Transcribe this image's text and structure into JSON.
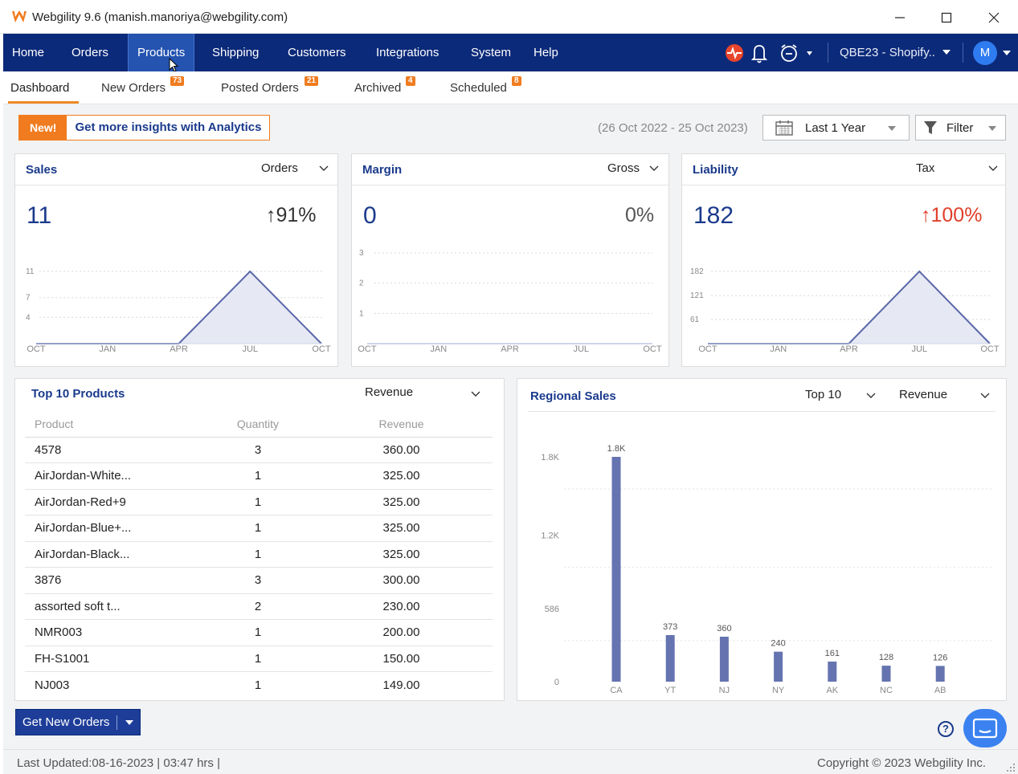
{
  "window": {
    "title": "Webgility 9.6 (manish.manoriya@webgility.com)",
    "minimize_icon": "minimize-icon",
    "maximize_icon": "maximize-icon",
    "close_icon": "close-icon"
  },
  "nav": {
    "items": [
      "Home",
      "Orders",
      "Products",
      "Shipping",
      "Customers",
      "Integrations",
      "System",
      "Help"
    ],
    "active": "Products",
    "company": "QBE23 - Shopify..",
    "avatar": "M"
  },
  "tabs": [
    {
      "label": "Dashboard",
      "badge": ""
    },
    {
      "label": "New Orders",
      "badge": "73"
    },
    {
      "label": "Posted Orders",
      "badge": "21"
    },
    {
      "label": "Archived",
      "badge": "4"
    },
    {
      "label": "Scheduled",
      "badge": "8"
    }
  ],
  "toolbar": {
    "promo_new": "New!",
    "promo_text": "Get more insights with Analytics",
    "date_range": "(26 Oct 2022 - 25 Oct 2023)",
    "period": "Last 1 Year",
    "filter": "Filter"
  },
  "colors": {
    "nav": "#0c2a7a",
    "accent": "#f07c1f",
    "title_blue": "#1a3a8c",
    "up_red": "#e0402a",
    "bar": "#6574b0"
  },
  "cards": {
    "sales": {
      "title": "Sales",
      "dropdown": "Orders",
      "value": "11",
      "change": "91%",
      "arrow": "↑"
    },
    "margin": {
      "title": "Margin",
      "dropdown": "Gross",
      "value": "0",
      "change": "0%"
    },
    "liability": {
      "title": "Liability",
      "dropdown": "Tax",
      "value": "182",
      "change": "100%",
      "arrow": "↑"
    }
  },
  "top_products": {
    "title": "Top 10 Products",
    "dropdown": "Revenue",
    "headers": [
      "Product",
      "Quantity",
      "Revenue"
    ],
    "rows": [
      [
        "4578",
        "3",
        "360.00"
      ],
      [
        "AirJordan-White...",
        "1",
        "325.00"
      ],
      [
        "AirJordan-Red+9",
        "1",
        "325.00"
      ],
      [
        "AirJordan-Blue+...",
        "1",
        "325.00"
      ],
      [
        "AirJordan-Black...",
        "1",
        "325.00"
      ],
      [
        "3876",
        "3",
        "300.00"
      ],
      [
        "assorted soft t...",
        "2",
        "230.00"
      ],
      [
        "NMR003",
        "1",
        "200.00"
      ],
      [
        "FH-S1001",
        "1",
        "150.00"
      ],
      [
        "NJ003",
        "1",
        "149.00"
      ]
    ]
  },
  "regional": {
    "title": "Regional Sales",
    "top_dropdown": "Top 10",
    "metric_dropdown": "Revenue"
  },
  "actions": {
    "get_new_orders": "Get New Orders"
  },
  "footer": {
    "last_updated": "Last Updated:08-16-2023 | 03:47 hrs |",
    "copyright": "Copyright © 2023 Webgility Inc."
  },
  "chart_data": [
    {
      "type": "area",
      "title": "Sales",
      "categories": [
        "OCT",
        "JAN",
        "APR",
        "JUL",
        "OCT"
      ],
      "y_ticks": [
        "4",
        "7",
        "11"
      ],
      "ylim": [
        0,
        11
      ],
      "values": [
        0,
        0,
        0,
        11,
        0
      ]
    },
    {
      "type": "line",
      "title": "Margin",
      "categories": [
        "OCT",
        "JAN",
        "APR",
        "JUL",
        "OCT"
      ],
      "y_ticks": [
        "1",
        "2",
        "3"
      ],
      "ylim": [
        0,
        3
      ],
      "values": [
        0,
        0,
        0,
        0,
        0
      ]
    },
    {
      "type": "area",
      "title": "Liability",
      "categories": [
        "OCT",
        "JAN",
        "APR",
        "JUL",
        "OCT"
      ],
      "y_ticks": [
        "61",
        "121",
        "182"
      ],
      "ylim": [
        0,
        182
      ],
      "values": [
        0,
        0,
        0,
        182,
        0
      ]
    },
    {
      "type": "bar",
      "title": "Regional Sales",
      "categories": [
        "CA",
        "YT",
        "NJ",
        "NY",
        "AK",
        "NC",
        "AB"
      ],
      "values": [
        1800,
        373,
        360,
        240,
        161,
        128,
        126
      ],
      "value_labels": [
        "1.8K",
        "373",
        "360",
        "240",
        "161",
        "128",
        "126"
      ],
      "y_ticks": [
        "0",
        "586",
        "1.2K",
        "1.8K"
      ],
      "ylim": [
        0,
        1800
      ]
    }
  ]
}
